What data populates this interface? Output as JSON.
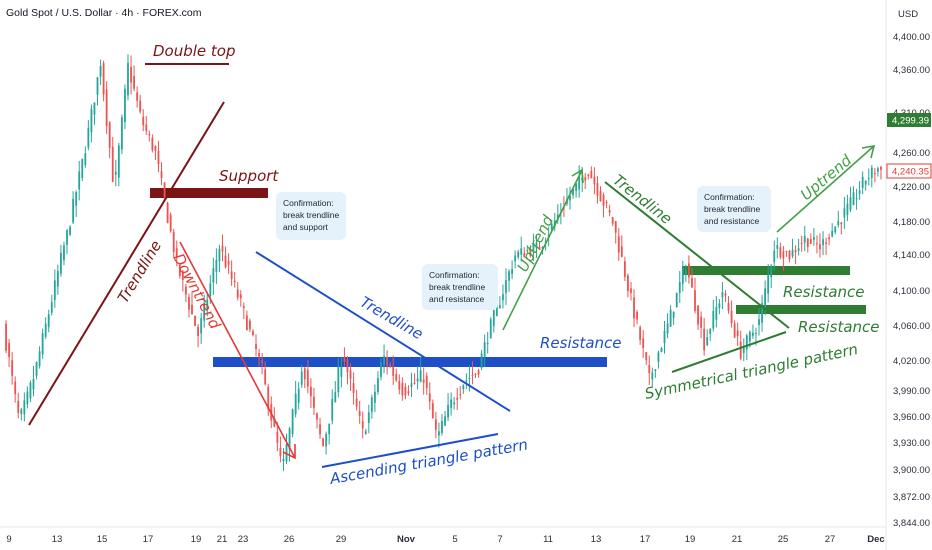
{
  "header": {
    "title": "Gold Spot / U.S. Dollar · 4h · FOREX.com"
  },
  "price_axis": {
    "currency": "USD",
    "ticks": [
      "4,400.00",
      "4,360.00",
      "4,310.00",
      "4,260.00",
      "4,220.00",
      "4,180.00",
      "4,140.00",
      "4,100.00",
      "4,060.00",
      "4,020.00",
      "3,990.00",
      "3,960.00",
      "3,930.00",
      "3,900.00",
      "3,872.00",
      "3,844.00"
    ],
    "badges": [
      {
        "text": "4,299.39",
        "bg": "#2e7d32",
        "fg": "#ffffff"
      },
      {
        "text": "4,240.35",
        "bg": "#ffffff",
        "fg": "#e53935"
      }
    ]
  },
  "time_axis": {
    "ticks": [
      "9",
      "13",
      "15",
      "17",
      "19",
      "21",
      "23",
      "26",
      "29",
      "Nov",
      "5",
      "7",
      "11",
      "13",
      "17",
      "19",
      "21",
      "25",
      "27",
      "Dec"
    ]
  },
  "annotations": {
    "double_top": "Double top",
    "support": "Support",
    "trendline_left": "Trendline",
    "downtrend": "Downtrend",
    "trendline_mid": "Trendline",
    "resistance_mid": "Resistance",
    "ascending_triangle": "Ascending triangle pattern",
    "uptrend_1": "Uptrend",
    "trendline_right": "Trendline",
    "resistance_r1": "Resistance",
    "resistance_r2": "Resistance",
    "symmetrical_triangle": "Symmetrical triangle pattern",
    "uptrend_2": "Uptrend",
    "callout_1": [
      "Confirmation:",
      "break trendline",
      "and support"
    ],
    "callout_2": [
      "Confirmation:",
      "break trendline",
      "and resistance"
    ],
    "callout_3": [
      "Confirmation:",
      "break trendline",
      "and resistance"
    ]
  },
  "colors": {
    "bull": "#26a69a",
    "bear": "#ef5350",
    "darkred": "#7b1416",
    "blue": "#1e4fc9",
    "green": "#2e7d32",
    "callout": "#e6f2fb"
  },
  "chart_data": {
    "type": "candlestick",
    "title": "Gold Spot / U.S. Dollar · 4h · FOREX.com",
    "timeframe": "4h",
    "ylabel": "USD",
    "ylim": [
      3844,
      4420
    ],
    "x_ticks": [
      "9",
      "13",
      "15",
      "17",
      "19",
      "21",
      "23",
      "26",
      "29",
      "Nov",
      "5",
      "7",
      "11",
      "13",
      "17",
      "19",
      "21",
      "25",
      "27",
      "Dec"
    ],
    "last_price": 4240.35,
    "marked_price": 4299.39,
    "segments": [
      {
        "from_index": 0,
        "to_index": 32,
        "points": [
          4060,
          3955,
          4010,
          4090,
          4170,
          4260,
          4370
        ]
      },
      {
        "from_index": 32,
        "to_index": 50,
        "points": [
          4370,
          4215,
          4365,
          4300,
          4260
        ]
      },
      {
        "from_index": 50,
        "to_index": 85,
        "points": [
          4260,
          4130,
          4050,
          4150,
          4085,
          4010
        ]
      },
      {
        "from_index": 85,
        "to_index": 138,
        "points": [
          4010,
          3900,
          4020,
          3925,
          4030,
          3940,
          4025,
          3990,
          4005
        ]
      },
      {
        "from_index": 138,
        "to_index": 160,
        "points": [
          4005,
          3935,
          3975,
          4000,
          4010,
          4060
        ]
      },
      {
        "from_index": 160,
        "to_index": 200,
        "points": [
          4060,
          4140,
          4150,
          4200,
          4240,
          4180
        ]
      },
      {
        "from_index": 200,
        "to_index": 248,
        "points": [
          4180,
          4090,
          4000,
          4060,
          4130,
          4040,
          4100,
          4030,
          4065
        ]
      },
      {
        "from_index": 248,
        "to_index": 288,
        "points": [
          4065,
          4150,
          4140,
          4160,
          4150,
          4175,
          4200,
          4230,
          4245
        ]
      }
    ]
  }
}
